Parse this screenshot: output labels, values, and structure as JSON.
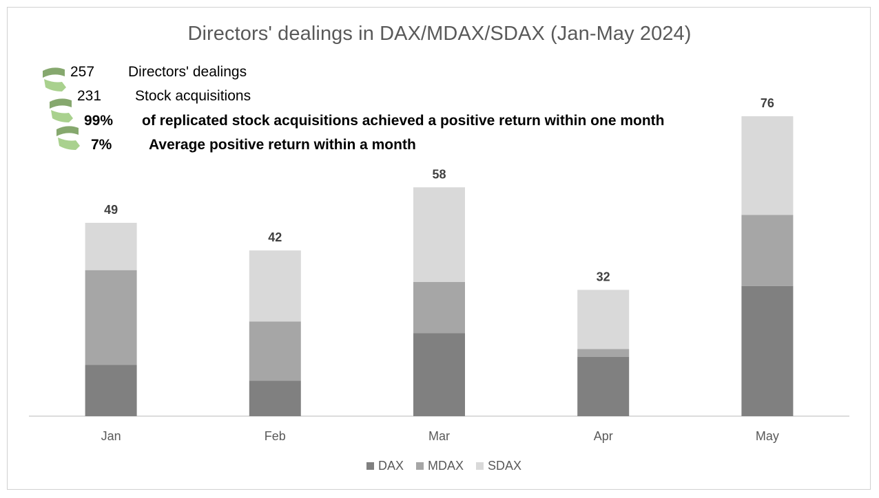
{
  "chart_data": {
    "type": "bar",
    "stacked": true,
    "title": "Directors' dealings in DAX/MDAX/SDAX (Jan-May 2024)",
    "categories": [
      "Jan",
      "Feb",
      "Mar",
      "Apr",
      "May"
    ],
    "series": [
      {
        "name": "DAX",
        "color": "#808080",
        "values": [
          13,
          9,
          21,
          15,
          33
        ]
      },
      {
        "name": "MDAX",
        "color": "#a6a6a6",
        "values": [
          24,
          15,
          13,
          2,
          18
        ]
      },
      {
        "name": "SDAX",
        "color": "#d9d9d9",
        "values": [
          12,
          18,
          24,
          15,
          25
        ]
      }
    ],
    "totals": [
      "49",
      "42",
      "58",
      "32",
      "76"
    ],
    "ylim": [
      0,
      76
    ],
    "legend_position": "bottom",
    "grid": false
  },
  "stats": [
    {
      "value": "257",
      "label": "Directors' dealings",
      "bold": false
    },
    {
      "value": "231",
      "label": "Stock acquisitions",
      "bold": false
    },
    {
      "value": "99%",
      "label": "of replicated stock acquisitions achieved a positive return within one month",
      "bold": true
    },
    {
      "value": "7%",
      "label": "Average positive return within a month",
      "bold": true
    }
  ],
  "icon_colors": {
    "dark": "#86a86e",
    "light": "#a9d18e"
  }
}
